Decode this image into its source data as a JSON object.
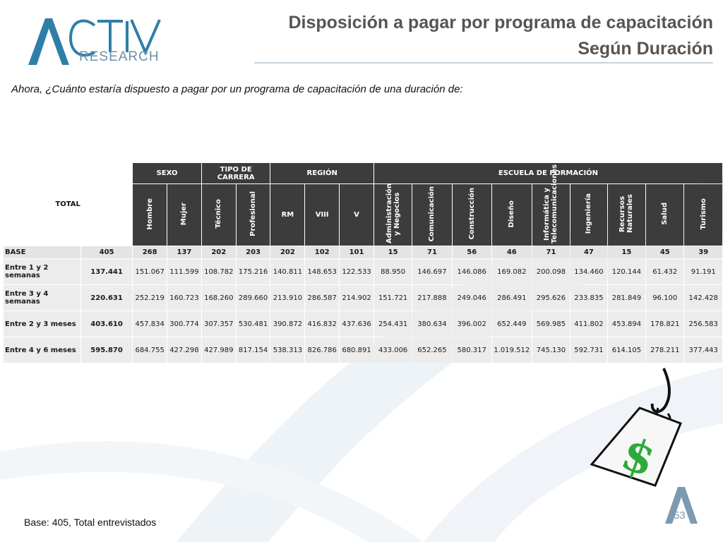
{
  "logo": {
    "word": "RESEARCH",
    "accent": "#2e7fa8"
  },
  "title": {
    "line1": "Disposición a pagar por programa de capacitación",
    "line2": "Según Duración"
  },
  "question": "Ahora, ¿Cuánto estaría dispuesto a pagar por un programa de capacitación de una duración de:",
  "table": {
    "total_label": "TOTAL",
    "groups": [
      "SEXO",
      "TIPO DE CARRERA",
      "REGIÓN",
      "ESCUELA DE FORMACIÓN"
    ],
    "columns": [
      "Hombre",
      "Mujer",
      "Técnico",
      "Profesional",
      "RM",
      "VIII",
      "V",
      "Administración y Negocios",
      "Comunicación",
      "Construcción",
      "Diseño",
      "Informática y Telecomunicaciones",
      "Ingeniería",
      "Recursos Naturales",
      "Salud",
      "Turismo"
    ],
    "rows": [
      {
        "label": "BASE",
        "total": "405",
        "values": [
          "268",
          "137",
          "202",
          "203",
          "202",
          "102",
          "101",
          "15",
          "71",
          "56",
          "46",
          "71",
          "47",
          "15",
          "45",
          "39"
        ]
      },
      {
        "label": "Entre 1 y 2 semanas",
        "total": "137.441",
        "values": [
          "151.067",
          "111.599",
          "108.782",
          "175.216",
          "140.811",
          "148.653",
          "122.533",
          "88.950",
          "146.697",
          "146.086",
          "169.082",
          "200.098",
          "134.460",
          "120.144",
          "61.432",
          "91.191"
        ]
      },
      {
        "label": "Entre 3 y 4 semanas",
        "total": "220.631",
        "values": [
          "252.219",
          "160.723",
          "168.260",
          "289.660",
          "213.910",
          "286.587",
          "214.902",
          "151.721",
          "217.888",
          "249.046",
          "286.491",
          "295.626",
          "233.835",
          "281.849",
          "96.100",
          "142.428"
        ]
      },
      {
        "label": "Entre 2 y 3 meses",
        "total": "403.610",
        "values": [
          "457.834",
          "300.774",
          "307.357",
          "530.481",
          "390.872",
          "416.832",
          "437.636",
          "254.431",
          "380.634",
          "396.002",
          "652.449",
          "569.985",
          "411.802",
          "453.894",
          "178.821",
          "256.583"
        ]
      },
      {
        "label": "Entre 4 y 6 meses",
        "total": "595.870",
        "values": [
          "684.755",
          "427.298",
          "427.989",
          "817.154",
          "538.313",
          "826.786",
          "680.891",
          "433.006",
          "652.265",
          "580.317",
          "1.019.512",
          "745.130",
          "592.731",
          "614.105",
          "278.211",
          "377.443"
        ]
      }
    ]
  },
  "footer": "Base: 405, Total entrevistados",
  "page_number": "53",
  "colors": {
    "header_bg": "#3c3c3c",
    "cell_bg": "#ececec",
    "title": "#555555",
    "money_green": "#2eaa3a"
  }
}
